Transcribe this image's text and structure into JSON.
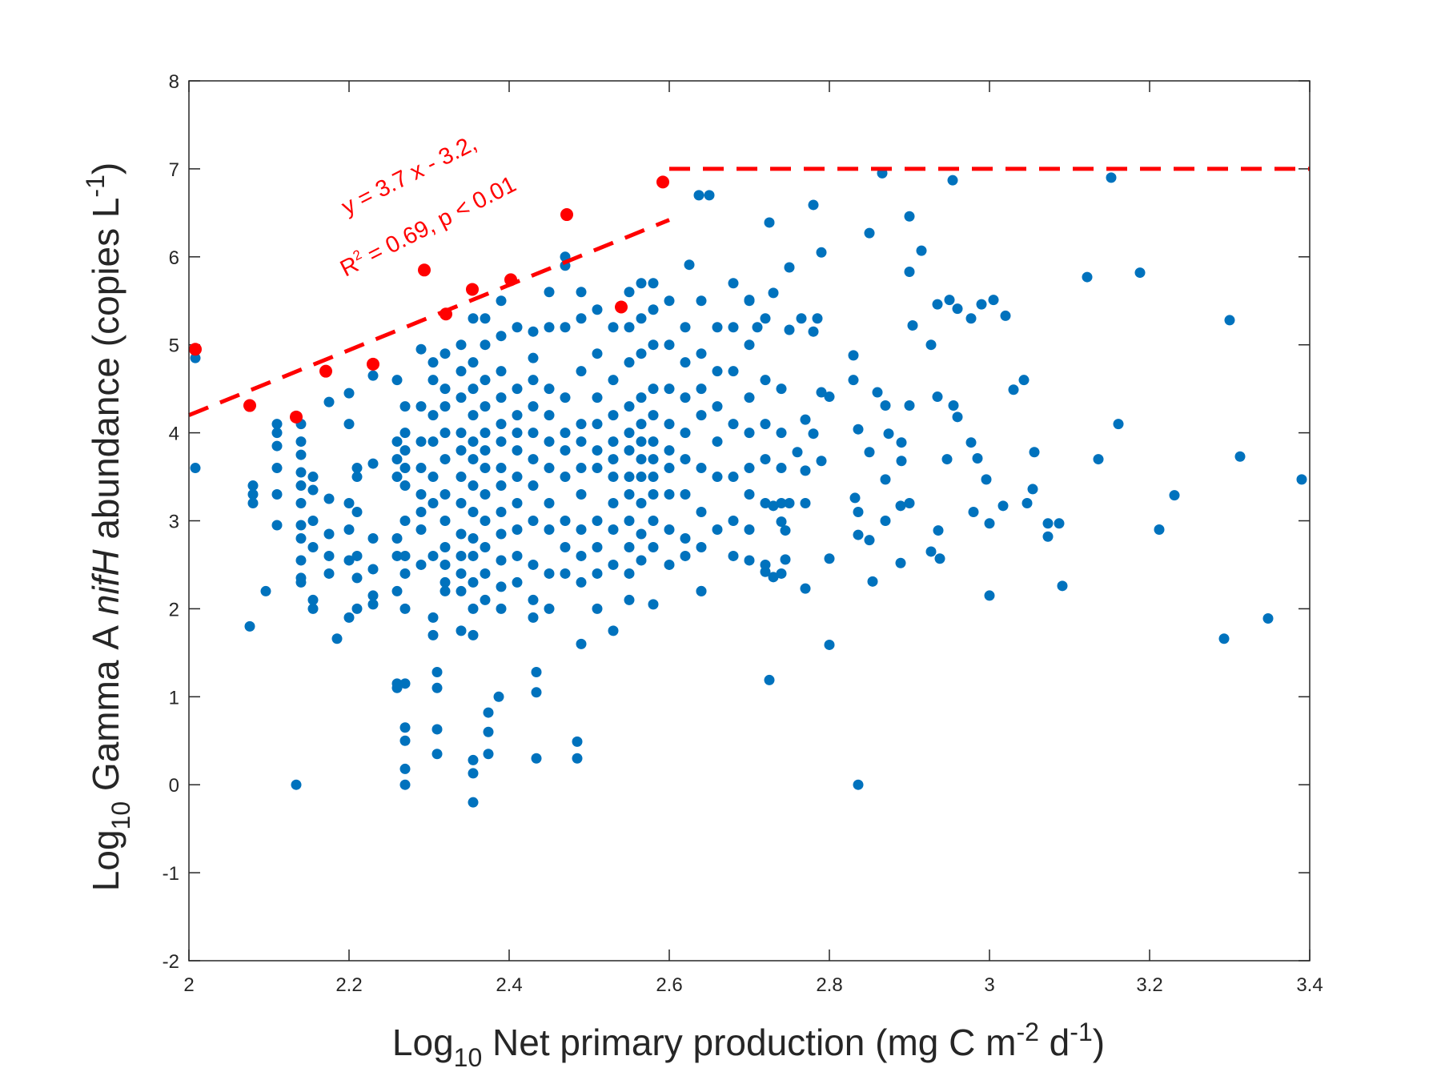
{
  "chart_data": {
    "type": "scatter",
    "title": "",
    "xlabel_parts": [
      {
        "text": "Log",
        "style": "normal"
      },
      {
        "text": "10",
        "style": "sub"
      },
      {
        "text": " Net primary production (mg C m",
        "style": "normal"
      },
      {
        "text": "-2",
        "style": "sup"
      },
      {
        "text": " d",
        "style": "normal"
      },
      {
        "text": "-1",
        "style": "sup"
      },
      {
        "text": ")",
        "style": "normal"
      }
    ],
    "ylabel_parts": [
      {
        "text": "Log",
        "style": "normal"
      },
      {
        "text": "10",
        "style": "sub"
      },
      {
        "text": " Gamma A ",
        "style": "normal"
      },
      {
        "text": "nifH",
        "style": "italic"
      },
      {
        "text": " abundance (copies L",
        "style": "normal"
      },
      {
        "text": "-1",
        "style": "sup"
      },
      {
        "text": ")",
        "style": "normal"
      }
    ],
    "xlim": [
      2,
      3.4
    ],
    "ylim": [
      -2,
      8
    ],
    "xticks": [
      "2",
      "2.2",
      "2.4",
      "2.6",
      "2.8",
      "3",
      "3.2",
      "3.4"
    ],
    "yticks": [
      "-2",
      "-1",
      "0",
      "1",
      "2",
      "3",
      "4",
      "5",
      "6",
      "7",
      "8"
    ],
    "grid": false,
    "colors": {
      "observations": "#0072BD",
      "upper_bound": "#FF0000",
      "fit": "#FF0000"
    },
    "annotation": {
      "line1": "y = 3.7 x - 3.2,",
      "line2_r": "R",
      "line2_sup": "2",
      "line2_rest": " = 0.69, p < 0.01"
    },
    "fit_line": {
      "slope": 3.7,
      "intercept": -3.2,
      "x_range": [
        2,
        2.6
      ]
    },
    "plateau_line": {
      "y": 7,
      "x_range": [
        2.6,
        3.4
      ]
    },
    "series": [
      {
        "name": "upper-bound points",
        "points": [
          [
            2.008,
            4.95
          ],
          [
            2.076,
            4.31
          ],
          [
            2.134,
            4.18
          ],
          [
            2.171,
            4.7
          ],
          [
            2.23,
            4.78
          ],
          [
            2.294,
            5.85
          ],
          [
            2.321,
            5.35
          ],
          [
            2.354,
            5.63
          ],
          [
            2.402,
            5.74
          ],
          [
            2.472,
            6.48
          ],
          [
            2.54,
            5.43
          ],
          [
            2.592,
            6.85
          ]
        ]
      },
      {
        "name": "observations",
        "stacks": [
          [
            2.08,
            [
              3.4,
              3.3,
              3.2
            ]
          ],
          [
            2.11,
            [
              4.1,
              4.0,
              3.85,
              3.6,
              3.3,
              2.95
            ]
          ],
          [
            2.14,
            [
              4.1,
              3.9,
              3.75,
              3.55,
              3.4,
              3.2,
              2.95,
              2.8,
              2.55,
              2.35,
              2.3
            ]
          ],
          [
            2.155,
            [
              3.5,
              3.35,
              3.0,
              2.7,
              2.1,
              2.0
            ]
          ],
          [
            2.175,
            [
              4.35,
              3.25,
              2.85,
              2.6,
              2.4
            ]
          ],
          [
            2.2,
            [
              4.45,
              4.1,
              3.2,
              2.9,
              2.55,
              1.9
            ]
          ],
          [
            2.21,
            [
              3.6,
              3.5,
              3.1,
              2.6,
              2.35,
              2.0
            ]
          ],
          [
            2.23,
            [
              4.65,
              3.65,
              2.8,
              2.45,
              2.15,
              2.05
            ]
          ],
          [
            2.26,
            [
              4.6,
              3.9,
              3.7,
              3.5,
              2.8,
              2.6,
              2.2,
              1.15
            ]
          ],
          [
            2.27,
            [
              4.3,
              4.0,
              3.8,
              3.6,
              3.4,
              3.0,
              2.6,
              2.4,
              2.0,
              1.15,
              0.65
            ]
          ],
          [
            2.29,
            [
              4.95,
              4.3,
              3.9,
              3.6,
              3.3,
              3.1,
              2.9,
              2.5
            ]
          ],
          [
            2.305,
            [
              4.8,
              4.6,
              4.2,
              3.9,
              3.5,
              3.2,
              2.6,
              1.9,
              1.7
            ]
          ],
          [
            2.32,
            [
              4.9,
              4.5,
              4.3,
              4.0,
              3.7,
              3.3,
              3.0,
              2.7,
              2.5,
              2.3,
              2.2
            ]
          ],
          [
            2.34,
            [
              5.0,
              4.7,
              4.4,
              4.0,
              3.8,
              3.5,
              3.2,
              2.85,
              2.6,
              2.4,
              2.2,
              1.75
            ]
          ],
          [
            2.355,
            [
              5.3,
              4.8,
              4.5,
              4.2,
              3.9,
              3.7,
              3.4,
              3.1,
              2.8,
              2.6,
              2.3,
              2.0,
              1.7
            ]
          ],
          [
            2.37,
            [
              5.3,
              5.0,
              4.6,
              4.3,
              4.0,
              3.8,
              3.6,
              3.3,
              3.0,
              2.7,
              2.4,
              2.1
            ]
          ],
          [
            2.39,
            [
              5.5,
              5.1,
              4.7,
              4.4,
              4.1,
              3.9,
              3.6,
              3.4,
              3.1,
              2.85,
              2.55,
              2.25,
              2.0
            ]
          ],
          [
            2.41,
            [
              5.2,
              4.5,
              4.2,
              4.0,
              3.8,
              3.5,
              3.2,
              2.9,
              2.6,
              2.3
            ]
          ],
          [
            2.43,
            [
              5.15,
              4.85,
              4.6,
              4.3,
              4.0,
              3.7,
              3.4,
              3.0,
              2.5,
              2.1,
              1.9
            ]
          ],
          [
            2.45,
            [
              5.6,
              5.2,
              4.5,
              4.2,
              3.9,
              3.6,
              3.2,
              2.9,
              2.4,
              2.0
            ]
          ],
          [
            2.47,
            [
              6.0,
              5.9,
              5.2,
              4.4,
              4.0,
              3.8,
              3.5,
              3.0,
              2.7,
              2.4
            ]
          ],
          [
            2.49,
            [
              5.6,
              5.3,
              4.7,
              4.1,
              3.9,
              3.6,
              3.3,
              2.9,
              2.6,
              2.3,
              1.6
            ]
          ],
          [
            2.51,
            [
              5.4,
              4.9,
              4.4,
              4.1,
              3.8,
              3.6,
              3.0,
              2.7,
              2.4,
              2.0
            ]
          ],
          [
            2.53,
            [
              5.2,
              4.6,
              4.2,
              3.9,
              3.7,
              3.5,
              3.2,
              2.9,
              2.5,
              1.75
            ]
          ],
          [
            2.55,
            [
              5.6,
              5.2,
              4.8,
              4.3,
              4.0,
              3.8,
              3.5,
              3.3,
              3.0,
              2.7,
              2.4,
              2.1
            ]
          ],
          [
            2.565,
            [
              5.7,
              5.3,
              4.9,
              4.4,
              4.1,
              3.9,
              3.7,
              3.5,
              3.2,
              2.85,
              2.55
            ]
          ],
          [
            2.58,
            [
              5.7,
              5.4,
              5.0,
              4.5,
              4.2,
              3.9,
              3.7,
              3.5,
              3.3,
              3.0,
              2.7,
              2.05
            ]
          ],
          [
            2.6,
            [
              5.5,
              5.0,
              4.5,
              4.1,
              3.8,
              3.6,
              3.3,
              2.9,
              2.5
            ]
          ],
          [
            2.62,
            [
              5.2,
              4.8,
              4.4,
              4.0,
              3.7,
              3.3,
              2.8,
              2.6
            ]
          ],
          [
            2.64,
            [
              5.5,
              4.9,
              4.5,
              4.2,
              3.6,
              3.1,
              2.7,
              2.2
            ]
          ],
          [
            2.66,
            [
              5.2,
              4.7,
              4.3,
              3.9,
              3.5,
              2.9
            ]
          ],
          [
            2.68,
            [
              5.7,
              5.2,
              4.7,
              4.1,
              3.5,
              3.0,
              2.6
            ]
          ],
          [
            2.7,
            [
              5.5,
              5.0,
              4.4,
              4.0,
              3.6,
              3.3,
              2.9,
              2.55
            ]
          ],
          [
            2.72,
            [
              5.3,
              4.6,
              4.1,
              3.7,
              3.2,
              2.5
            ]
          ],
          [
            2.74,
            [
              4.5,
              4.0,
              3.6,
              3.2,
              2.4
            ]
          ]
        ],
        "points": [
          [
            2.008,
            4.85
          ],
          [
            2.008,
            3.6
          ],
          [
            2.076,
            1.8
          ],
          [
            2.096,
            2.2
          ],
          [
            2.134,
            0
          ],
          [
            2.185,
            1.66
          ],
          [
            2.26,
            1.1
          ],
          [
            2.27,
            0
          ],
          [
            2.27,
            0.18
          ],
          [
            2.27,
            0.5
          ],
          [
            2.31,
            0.35
          ],
          [
            2.31,
            0.63
          ],
          [
            2.355,
            -0.2
          ],
          [
            2.355,
            0.13
          ],
          [
            2.355,
            0.28
          ],
          [
            2.374,
            0.35
          ],
          [
            2.374,
            0.6
          ],
          [
            2.374,
            0.82
          ],
          [
            2.387,
            1.0
          ],
          [
            2.434,
            0.3
          ],
          [
            2.434,
            1.05
          ],
          [
            2.434,
            1.28
          ],
          [
            2.485,
            0.49
          ],
          [
            2.485,
            0.3
          ],
          [
            2.31,
            1.28
          ],
          [
            2.31,
            1.1
          ],
          [
            2.725,
            1.19
          ],
          [
            2.836,
            0
          ],
          [
            2.8,
            1.59
          ],
          [
            2.64,
            2.2
          ],
          [
            3.091,
            2.26
          ],
          [
            3.0,
            2.15
          ],
          [
            3.293,
            1.66
          ],
          [
            3.348,
            1.89
          ],
          [
            3.212,
            2.9
          ],
          [
            3.231,
            3.29
          ],
          [
            3.313,
            3.73
          ],
          [
            3.39,
            3.47
          ],
          [
            3.3,
            5.28
          ],
          [
            3.161,
            4.1
          ],
          [
            3.136,
            3.7
          ],
          [
            3.122,
            5.77
          ],
          [
            3.188,
            5.82
          ],
          [
            3.152,
            6.9
          ],
          [
            2.954,
            6.87
          ],
          [
            2.866,
            6.95
          ],
          [
            2.9,
            6.46
          ],
          [
            2.85,
            6.27
          ],
          [
            2.78,
            6.59
          ],
          [
            2.725,
            6.39
          ],
          [
            2.79,
            6.05
          ],
          [
            2.75,
            5.88
          ],
          [
            2.915,
            6.07
          ],
          [
            2.9,
            5.83
          ],
          [
            2.65,
            6.7
          ],
          [
            2.637,
            6.7
          ],
          [
            2.625,
            5.91
          ],
          [
            3.043,
            4.6
          ],
          [
            3.03,
            4.49
          ],
          [
            3.02,
            5.33
          ],
          [
            3.005,
            5.51
          ],
          [
            2.99,
            5.46
          ],
          [
            2.977,
            5.3
          ],
          [
            2.935,
            5.46
          ],
          [
            2.95,
            5.51
          ],
          [
            2.96,
            5.41
          ],
          [
            2.927,
            5.0
          ],
          [
            2.904,
            5.22
          ],
          [
            2.955,
            4.31
          ],
          [
            2.96,
            4.18
          ],
          [
            2.935,
            4.41
          ],
          [
            2.977,
            3.89
          ],
          [
            2.985,
            3.71
          ],
          [
            2.996,
            3.47
          ],
          [
            3.0,
            2.97
          ],
          [
            2.98,
            3.1
          ],
          [
            3.017,
            3.17
          ],
          [
            3.047,
            3.2
          ],
          [
            3.056,
            3.78
          ],
          [
            3.054,
            3.36
          ],
          [
            3.073,
            2.82
          ],
          [
            3.087,
            2.97
          ],
          [
            3.073,
            2.97
          ],
          [
            2.938,
            2.57
          ],
          [
            2.927,
            2.65
          ],
          [
            2.936,
            2.89
          ],
          [
            2.947,
            3.7
          ],
          [
            2.854,
            2.31
          ],
          [
            2.85,
            2.78
          ],
          [
            2.836,
            2.84
          ],
          [
            2.832,
            3.26
          ],
          [
            2.836,
            3.1
          ],
          [
            2.87,
            3.0
          ],
          [
            2.889,
            3.17
          ],
          [
            2.9,
            3.2
          ],
          [
            2.889,
            2.52
          ],
          [
            2.87,
            3.47
          ],
          [
            2.89,
            3.68
          ],
          [
            2.89,
            3.89
          ],
          [
            2.874,
            3.99
          ],
          [
            2.85,
            3.78
          ],
          [
            2.836,
            4.04
          ],
          [
            2.83,
            4.88
          ],
          [
            2.83,
            4.6
          ],
          [
            2.86,
            4.46
          ],
          [
            2.87,
            4.31
          ],
          [
            2.9,
            4.31
          ],
          [
            2.79,
            4.46
          ],
          [
            2.8,
            4.41
          ],
          [
            2.77,
            4.15
          ],
          [
            2.78,
            3.99
          ],
          [
            2.76,
            3.78
          ],
          [
            2.79,
            3.68
          ],
          [
            2.77,
            3.57
          ],
          [
            2.75,
            3.2
          ],
          [
            2.77,
            3.2
          ],
          [
            2.73,
            3.17
          ],
          [
            2.74,
            2.99
          ],
          [
            2.745,
            2.89
          ],
          [
            2.72,
            2.42
          ],
          [
            2.73,
            2.36
          ],
          [
            2.77,
            2.23
          ],
          [
            2.745,
            2.56
          ],
          [
            2.8,
            2.57
          ],
          [
            2.785,
            5.3
          ],
          [
            2.765,
            5.3
          ],
          [
            2.75,
            5.17
          ],
          [
            2.78,
            5.15
          ],
          [
            2.73,
            5.59
          ],
          [
            2.71,
            5.2
          ],
          [
            2.7,
            5.51
          ]
        ]
      }
    ]
  }
}
